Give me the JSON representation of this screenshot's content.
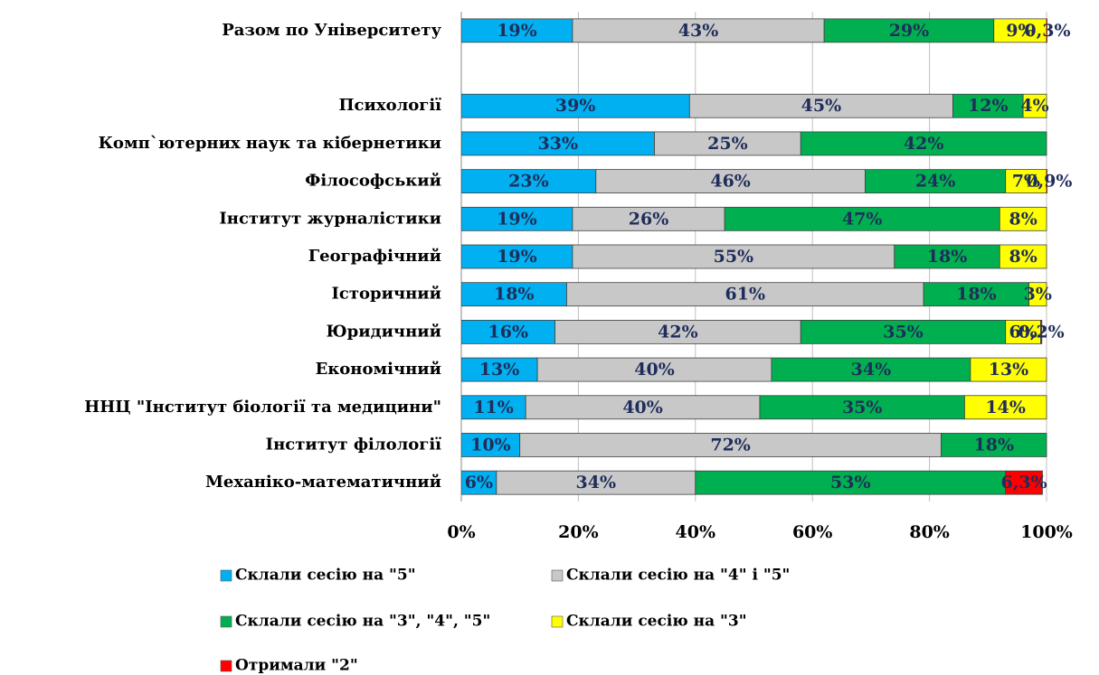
{
  "chart_data": {
    "type": "stacked-bar-horizontal",
    "categories": [
      "Разом по Університету",
      null,
      "Психології",
      "Комп`ютерних наук та кібернетики",
      "Філософський",
      "Інститут журналістики",
      "Географічний",
      "Історичний",
      "Юридичний",
      "Економічний",
      "ННЦ \"Інститут біології та медицини\"",
      "Інститут філології",
      "Механіко-математичний"
    ],
    "series": [
      {
        "name": "Склали сесію на \"5\"",
        "color": "#00b0f0",
        "values": [
          19,
          null,
          39,
          33,
          23,
          19,
          19,
          18,
          16,
          13,
          11,
          10,
          6
        ],
        "value_labels": [
          "19%",
          null,
          "39%",
          "33%",
          "23%",
          "19%",
          "19%",
          "18%",
          "16%",
          "13%",
          "11%",
          "10%",
          "6%"
        ]
      },
      {
        "name": "Склали сесію на \"4\" і \"5\"",
        "color": "#c8c8c8",
        "values": [
          43,
          null,
          45,
          25,
          46,
          26,
          55,
          61,
          42,
          40,
          40,
          72,
          34
        ],
        "value_labels": [
          "43%",
          null,
          "45%",
          "25%",
          "46%",
          "26%",
          "55%",
          "61%",
          "42%",
          "40%",
          "40%",
          "72%",
          "34%"
        ]
      },
      {
        "name": "Склали сесію на \"3\", \"4\", \"5\"",
        "color": "#00b050",
        "values": [
          29,
          null,
          12,
          42,
          24,
          47,
          18,
          18,
          35,
          34,
          35,
          18,
          53
        ],
        "value_labels": [
          "29%",
          null,
          "12%",
          "42%",
          "24%",
          "47%",
          "18%",
          "18%",
          "35%",
          "34%",
          "35%",
          "18%",
          "53%"
        ]
      },
      {
        "name": "Склали сесію на \"3\"",
        "color": "#ffff00",
        "values": [
          9,
          null,
          4,
          null,
          7,
          8,
          8,
          3,
          6,
          13,
          14,
          null,
          null
        ],
        "value_labels": [
          "9%",
          null,
          "4%",
          null,
          "7%",
          "8%",
          "8%",
          "3%",
          "6%",
          "13%",
          "14%",
          null,
          null
        ]
      },
      {
        "name": "Отримали \"2\"",
        "color": "#ff0000",
        "values": [
          0.3,
          null,
          null,
          null,
          0.9,
          null,
          null,
          null,
          0.2,
          null,
          null,
          null,
          6.3
        ],
        "value_labels": [
          "0,3%",
          null,
          null,
          null,
          "0,9%",
          null,
          null,
          null,
          "0,2%",
          null,
          null,
          null,
          "6,3%"
        ]
      }
    ],
    "xlim": [
      0,
      100
    ],
    "xticks": [
      {
        "value": 0,
        "label": "0%"
      },
      {
        "value": 20,
        "label": "20%"
      },
      {
        "value": 40,
        "label": "40%"
      },
      {
        "value": 60,
        "label": "60%"
      },
      {
        "value": 80,
        "label": "80%"
      },
      {
        "value": 100,
        "label": "100%"
      }
    ],
    "grid": true,
    "legend": "bottom"
  }
}
